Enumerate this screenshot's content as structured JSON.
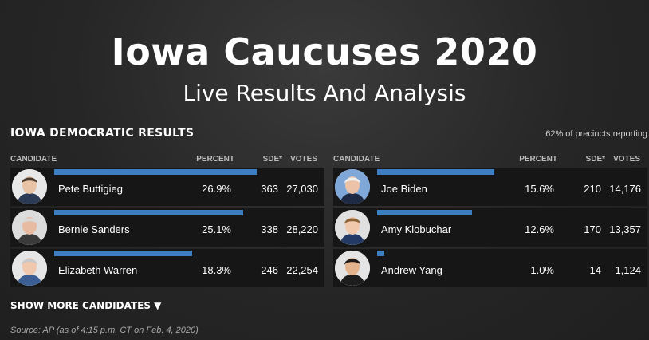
{
  "header": {
    "title": "Iowa Caucuses 2020",
    "subtitle": "Live Results And Analysis"
  },
  "results": {
    "title": "IOWA DEMOCRATIC RESULTS",
    "reporting": "62% of precincts reporting",
    "columns": {
      "candidate": "CANDIDATE",
      "percent": "PERCENT",
      "sde": "SDE*",
      "votes": "VOTES"
    },
    "bar_color": "#3d7dc2",
    "candidates": [
      {
        "name": "Pete Buttigieg",
        "percent": "26.9%",
        "pct_value": 26.9,
        "sde": "363",
        "votes": "27,030",
        "photo_icon": "pete-buttigieg-photo"
      },
      {
        "name": "Bernie Sanders",
        "percent": "25.1%",
        "pct_value": 25.1,
        "sde": "338",
        "votes": "28,220",
        "photo_icon": "bernie-sanders-photo"
      },
      {
        "name": "Elizabeth Warren",
        "percent": "18.3%",
        "pct_value": 18.3,
        "sde": "246",
        "votes": "22,254",
        "photo_icon": "elizabeth-warren-photo"
      },
      {
        "name": "Joe Biden",
        "percent": "15.6%",
        "pct_value": 15.6,
        "sde": "210",
        "votes": "14,176",
        "photo_icon": "joe-biden-photo"
      },
      {
        "name": "Amy Klobuchar",
        "percent": "12.6%",
        "pct_value": 12.6,
        "sde": "170",
        "votes": "13,357",
        "photo_icon": "amy-klobuchar-photo"
      },
      {
        "name": "Andrew Yang",
        "percent": "1.0%",
        "pct_value": 1.0,
        "sde": "14",
        "votes": "1,124",
        "photo_icon": "andrew-yang-photo"
      }
    ],
    "show_more": "SHOW MORE CANDIDATES ▼",
    "source": "Source: AP (as of 4:15 p.m. CT on Feb. 4, 2020)"
  }
}
